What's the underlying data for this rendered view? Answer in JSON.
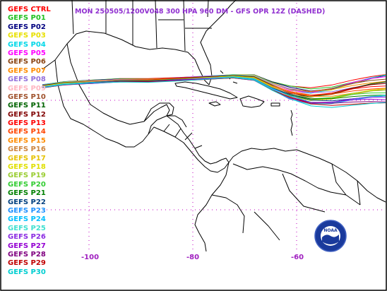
{
  "title": "MON 250505/1200V048  300 HPA 960 DM - GFS OPR 12Z (DASHED)",
  "legend": [
    {
      "label": "GEFS CTRL",
      "color": "#ff0000"
    },
    {
      "label": "GEFS P01",
      "color": "#20c020"
    },
    {
      "label": "GEFS P02",
      "color": "#000080"
    },
    {
      "label": "GEFS P03",
      "color": "#e8e000"
    },
    {
      "label": "GEFS P04",
      "color": "#00d8e8"
    },
    {
      "label": "GEFS P05",
      "color": "#ff00ff"
    },
    {
      "label": "GEFS P06",
      "color": "#8b4513"
    },
    {
      "label": "GEFS P07",
      "color": "#ff8c00"
    },
    {
      "label": "GEFS P08",
      "color": "#9370db"
    },
    {
      "label": "GEFS P09",
      "color": "#ffb6c1"
    },
    {
      "label": "GEFS P10",
      "color": "#a0522d"
    },
    {
      "label": "GEFS P11",
      "color": "#006400"
    },
    {
      "label": "GEFS P12",
      "color": "#800000"
    },
    {
      "label": "GEFS P13",
      "color": "#ff0000"
    },
    {
      "label": "GEFS P14",
      "color": "#ff4500"
    },
    {
      "label": "GEFS P15",
      "color": "#ff8c00"
    },
    {
      "label": "GEFS P16",
      "color": "#cd853f"
    },
    {
      "label": "GEFS P17",
      "color": "#e6c200"
    },
    {
      "label": "GEFS P18",
      "color": "#e0e000"
    },
    {
      "label": "GEFS P19",
      "color": "#9acd32"
    },
    {
      "label": "GEFS P20",
      "color": "#32cd32"
    },
    {
      "label": "GEFS P21",
      "color": "#008000"
    },
    {
      "label": "GEFS P22",
      "color": "#004080"
    },
    {
      "label": "GEFS P23",
      "color": "#1e90ff"
    },
    {
      "label": "GEFS P24",
      "color": "#00bfff"
    },
    {
      "label": "GEFS P25",
      "color": "#40e0d0"
    },
    {
      "label": "GEFS P26",
      "color": "#8a2be2"
    },
    {
      "label": "GEFS P27",
      "color": "#9400d3"
    },
    {
      "label": "GEFS P28",
      "color": "#800080"
    },
    {
      "label": "GEFS P29",
      "color": "#c00000"
    },
    {
      "label": "GEFS P30",
      "color": "#00ced1"
    }
  ],
  "lon_labels": [
    "-100",
    "-80",
    "-60"
  ],
  "logo": {
    "text": "NOAA"
  },
  "colors": {
    "land_outline": "#000000",
    "grid": "#c000c0",
    "title": "#9030d0"
  }
}
